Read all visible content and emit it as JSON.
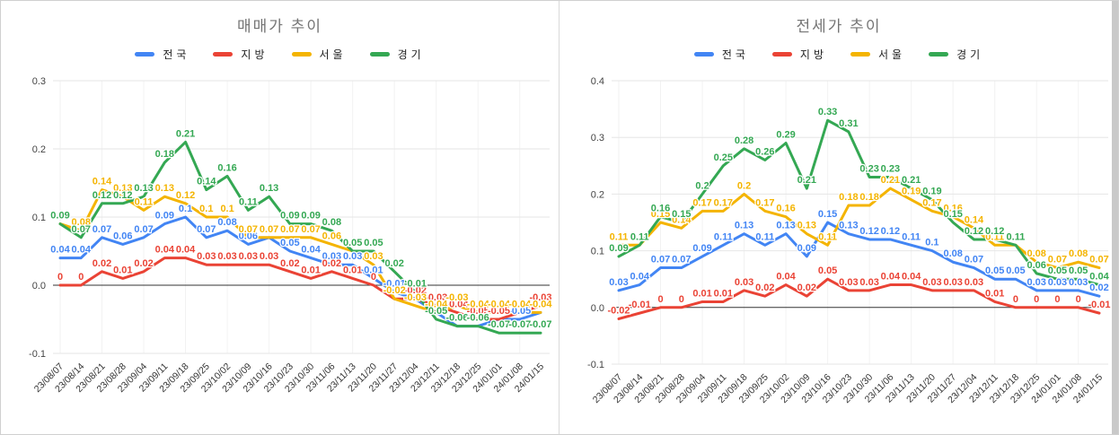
{
  "charts": [
    {
      "title": "매매가 추이",
      "chart_data": {
        "type": "line",
        "x": [
          "23/08/07",
          "23/08/14",
          "23/08/21",
          "23/08/28",
          "23/09/04",
          "23/09/11",
          "23/09/18",
          "23/09/25",
          "23/10/02",
          "23/10/09",
          "23/10/16",
          "23/10/23",
          "23/10/30",
          "23/11/06",
          "23/11/13",
          "23/11/20",
          "23/11/27",
          "23/12/04",
          "23/12/11",
          "23/12/18",
          "23/12/25",
          "24/01/01",
          "24/01/08",
          "24/01/15"
        ],
        "series": [
          {
            "name": "전국",
            "color": "#4285f4",
            "values": [
              0.04,
              0.04,
              0.07,
              0.06,
              0.07,
              0.09,
              0.1,
              0.07,
              0.08,
              0.06,
              0.07,
              0.05,
              0.04,
              0.03,
              0.03,
              0.01,
              -0.01,
              -0.02,
              -0.04,
              -0.06,
              -0.06,
              -0.05,
              -0.05,
              -0.04
            ]
          },
          {
            "name": "지방",
            "color": "#ea4335",
            "values": [
              0,
              0,
              0.02,
              0.01,
              0.02,
              0.04,
              0.04,
              0.03,
              0.03,
              0.03,
              0.03,
              0.02,
              0.01,
              0.02,
              0.01,
              0,
              -0.02,
              -0.02,
              -0.03,
              -0.04,
              -0.05,
              -0.05,
              -0.04,
              -0.03
            ]
          },
          {
            "name": "서울",
            "color": "#f4b400",
            "values": [
              0.09,
              0.08,
              0.14,
              0.13,
              0.11,
              0.13,
              0.12,
              0.1,
              0.1,
              0.07,
              0.07,
              0.07,
              0.07,
              0.06,
              0.05,
              0.03,
              -0.02,
              -0.03,
              -0.04,
              -0.03,
              -0.04,
              -0.04,
              -0.04,
              -0.04
            ]
          },
          {
            "name": "경기",
            "color": "#34a853",
            "values": [
              0.09,
              0.07,
              0.12,
              0.12,
              0.13,
              0.18,
              0.21,
              0.14,
              0.16,
              0.11,
              0.13,
              0.09,
              0.09,
              0.08,
              0.05,
              0.05,
              0.02,
              -0.01,
              -0.05,
              -0.06,
              -0.06,
              -0.07,
              -0.07,
              -0.07
            ]
          }
        ],
        "ylim": [
          -0.1,
          0.3
        ],
        "yticks": [
          "0.3",
          "0.2",
          "0.1",
          "0.0",
          "-0.1"
        ],
        "grid": true,
        "legend_position": "top",
        "title": "매매가 추이",
        "xlabel": "",
        "ylabel": ""
      }
    },
    {
      "title": "전세가 추이",
      "chart_data": {
        "type": "line",
        "x": [
          "23/08/07",
          "23/08/14",
          "23/08/21",
          "23/08/28",
          "23/09/04",
          "23/09/11",
          "23/09/18",
          "23/09/25",
          "23/10/02",
          "23/10/09",
          "23/10/16",
          "23/10/23",
          "23/10/30",
          "23/11/06",
          "23/11/13",
          "23/11/20",
          "23/11/27",
          "23/12/04",
          "23/12/11",
          "23/12/18",
          "23/12/25",
          "24/01/01",
          "24/01/08",
          "24/01/15"
        ],
        "series": [
          {
            "name": "전국",
            "color": "#4285f4",
            "values": [
              0.03,
              0.04,
              0.07,
              0.07,
              0.09,
              0.11,
              0.13,
              0.11,
              0.13,
              0.09,
              0.15,
              0.13,
              0.12,
              0.12,
              0.11,
              0.1,
              0.08,
              0.07,
              0.05,
              0.05,
              0.03,
              0.03,
              0.03,
              0.02
            ]
          },
          {
            "name": "지방",
            "color": "#ea4335",
            "values": [
              -0.02,
              -0.01,
              0,
              0,
              0.01,
              0.01,
              0.03,
              0.02,
              0.04,
              0.02,
              0.05,
              0.03,
              0.03,
              0.04,
              0.04,
              0.03,
              0.03,
              0.03,
              0.01,
              0,
              0,
              0,
              0,
              -0.01
            ]
          },
          {
            "name": "서울",
            "color": "#f4b400",
            "values": [
              0.11,
              0.11,
              0.15,
              0.14,
              0.17,
              0.17,
              0.2,
              0.17,
              0.16,
              0.13,
              0.11,
              0.18,
              0.18,
              0.21,
              0.19,
              0.17,
              0.16,
              0.14,
              0.11,
              0.11,
              0.08,
              0.07,
              0.08,
              0.07
            ]
          },
          {
            "name": "경기",
            "color": "#34a853",
            "values": [
              0.09,
              0.11,
              0.16,
              0.15,
              0.2,
              0.25,
              0.28,
              0.26,
              0.29,
              0.21,
              0.33,
              0.31,
              0.23,
              0.23,
              0.21,
              0.19,
              0.15,
              0.12,
              0.12,
              0.11,
              0.06,
              0.05,
              0.05,
              0.04
            ]
          }
        ],
        "ylim": [
          -0.1,
          0.4
        ],
        "yticks": [
          "0.4",
          "0.3",
          "0.2",
          "0.1",
          "0.0",
          "-0.1"
        ],
        "grid": true,
        "legend_position": "top",
        "title": "전세가 추이",
        "xlabel": "",
        "ylabel": ""
      }
    }
  ],
  "colors": {
    "grid": "#e6e6e6",
    "zero_line": "#333333",
    "axis_text": "#444444",
    "title_text": "#757575"
  }
}
